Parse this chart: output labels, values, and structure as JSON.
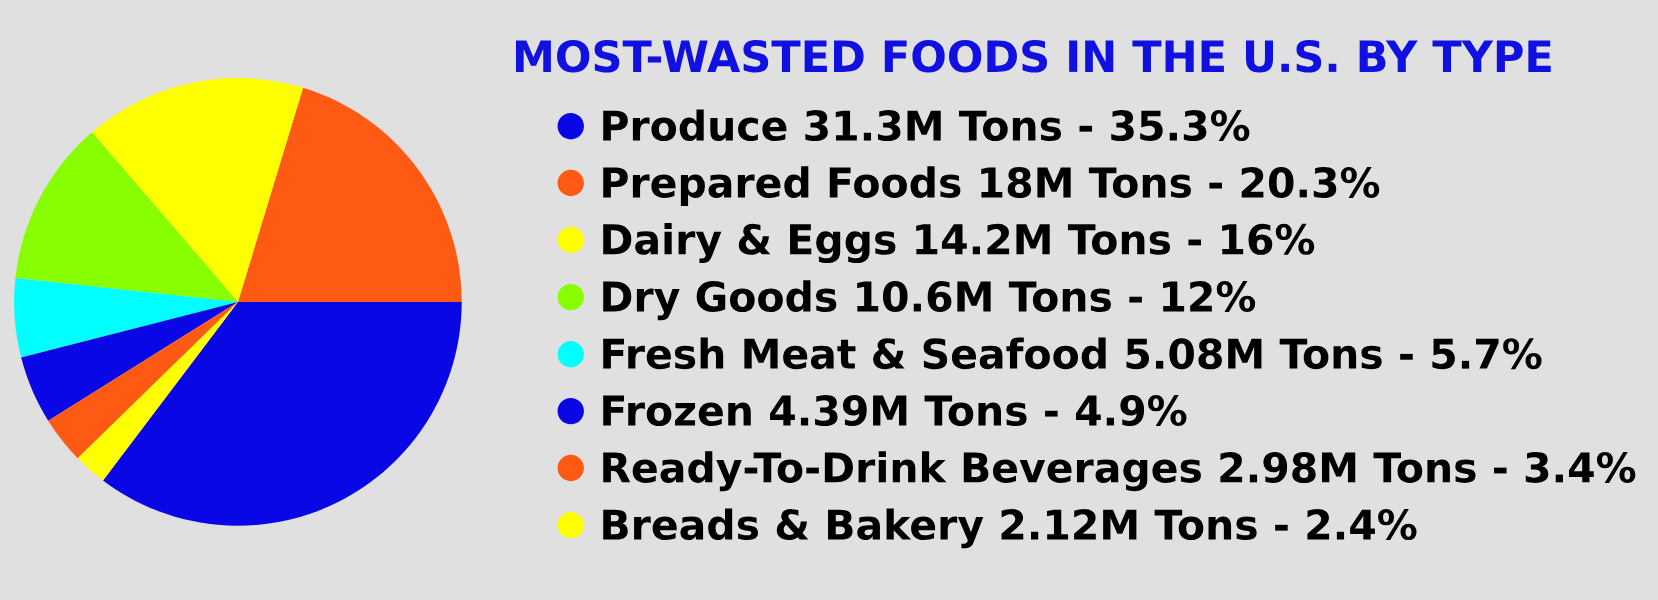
{
  "chart_data": {
    "type": "pie",
    "title": "MOST-WASTED FOODS IN THE U.S. BY TYPE",
    "categories": [
      "Produce 31.3M Tons - 35.3%",
      "Prepared Foods 18M Tons - 20.3%",
      "Dairy & Eggs 14.2M Tons - 16%",
      "Dry Goods 10.6M Tons - 12%",
      "Fresh Meat & Seafood 5.08M Tons - 5.7%",
      "Frozen 4.39M Tons - 4.9%",
      "Ready-To-Drink Beverages 2.98M Tons - 3.4%",
      "Breads & Bakery 2.12M Tons - 2.4%"
    ],
    "values": [
      35.3,
      20.3,
      16,
      12,
      5.7,
      4.9,
      3.4,
      2.4
    ],
    "colors": [
      "#0a07e6",
      "#ff5a14",
      "#ffff00",
      "#88ff00",
      "#00ffff",
      "#0a07e6",
      "#ff5a14",
      "#ffff00"
    ],
    "legend": "right"
  }
}
